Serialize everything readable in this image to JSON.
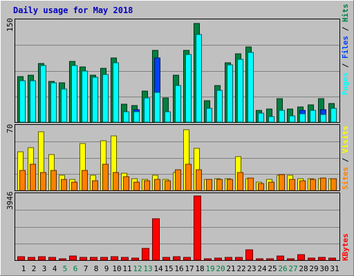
{
  "title": "Daily usage for May 2018",
  "colors": {
    "background": "#c0c0c0",
    "title": "#0000c0",
    "grid": "#808080",
    "hits": "#008040",
    "files": "#0040ff",
    "pages": "#00ffff",
    "visits": "#ffff00",
    "sites": "#ff8000",
    "kbytes": "#ff0000",
    "weekend_label": "#008040"
  },
  "chart_data": [
    {
      "type": "bar",
      "panel": "hits-files-pages",
      "ymax_label": "150",
      "legend": {
        "pages": "Pages",
        "files": "Files",
        "hits": "Hits",
        "sep": " / "
      },
      "days": [
        "1",
        "2",
        "3",
        "4",
        "5",
        "6",
        "7",
        "8",
        "9",
        "10",
        "11",
        "12",
        "13",
        "14",
        "15",
        "16",
        "17",
        "18",
        "19",
        "20",
        "21",
        "22",
        "23",
        "24",
        "25",
        "26",
        "27",
        "28",
        "29",
        "30",
        "31"
      ],
      "weekend_days": [
        "5",
        "6",
        "12",
        "13",
        "19",
        "20",
        "26",
        "27"
      ],
      "series": [
        {
          "name": "Hits",
          "values": [
            68,
            70,
            88,
            61,
            59,
            91,
            83,
            70,
            81,
            96,
            27,
            25,
            47,
            108,
            36,
            70,
            108,
            148,
            32,
            55,
            89,
            102,
            113,
            18,
            20,
            35,
            20,
            23,
            26,
            35,
            28
          ]
        },
        {
          "name": "Files",
          "values": [
            62,
            62,
            85,
            59,
            50,
            85,
            77,
            67,
            71,
            89,
            16,
            19,
            36,
            96,
            15,
            42,
            101,
            131,
            21,
            48,
            86,
            94,
            104,
            11,
            8,
            18,
            9,
            18,
            18,
            19,
            21
          ]
        },
        {
          "name": "Pages",
          "values": [
            62,
            62,
            85,
            59,
            50,
            85,
            77,
            67,
            71,
            89,
            16,
            16,
            36,
            44,
            15,
            55,
            101,
            131,
            21,
            48,
            86,
            94,
            104,
            13,
            8,
            18,
            9,
            12,
            18,
            11,
            21
          ]
        }
      ],
      "ylim": [
        0,
        150
      ]
    },
    {
      "type": "bar",
      "panel": "visits-sites",
      "ymax_label": "70",
      "legend": {
        "sites": "Sites",
        "visits": "Visits",
        "sep": " / "
      },
      "series": [
        {
          "name": "Visits",
          "values": [
            43,
            48,
            65,
            40,
            17,
            12,
            52,
            17,
            55,
            61,
            19,
            13,
            12,
            17,
            12,
            20,
            68,
            47,
            12,
            13,
            13,
            38,
            13,
            9,
            12,
            17,
            17,
            13,
            13,
            13,
            13
          ]
        },
        {
          "name": "Sites",
          "values": [
            22,
            29,
            20,
            22,
            12,
            9,
            22,
            11,
            29,
            20,
            15,
            9,
            11,
            12,
            11,
            23,
            29,
            23,
            12,
            12,
            12,
            20,
            14,
            8,
            9,
            18,
            12,
            11,
            12,
            14,
            13
          ]
        }
      ],
      "ylim": [
        0,
        70
      ]
    },
    {
      "type": "bar",
      "panel": "kbytes",
      "ymax_label": "3946",
      "legend": {
        "kbytes": "KBytes"
      },
      "series": [
        {
          "name": "KBytes",
          "values": [
            195,
            169,
            198,
            186,
            105,
            260,
            158,
            166,
            182,
            198,
            188,
            120,
            737,
            2546,
            182,
            191,
            173,
            3946,
            104,
            118,
            178,
            177,
            623,
            77,
            71,
            234,
            88,
            339,
            140,
            176,
            110
          ]
        }
      ],
      "ylim": [
        0,
        3946
      ]
    }
  ]
}
